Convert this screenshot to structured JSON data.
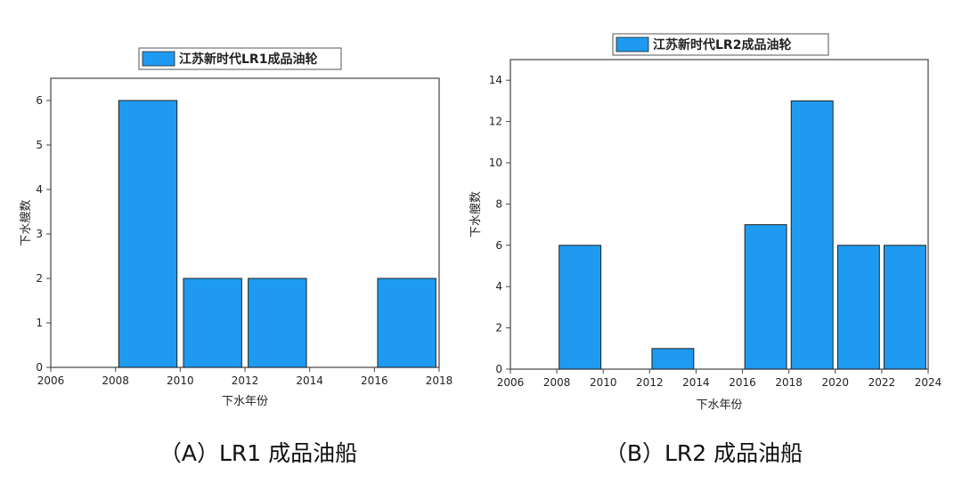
{
  "chart_data": [
    {
      "type": "bar",
      "caption": "（A）LR1 成品油船",
      "legend": "江苏新时代LR1成品油轮",
      "xlabel": "下水年份",
      "ylabel": "下水艘数",
      "xlim": [
        2006,
        2018
      ],
      "ylim": [
        0,
        6.5
      ],
      "xticks": [
        2006,
        2008,
        2010,
        2012,
        2014,
        2016,
        2018
      ],
      "yticks": [
        0,
        1,
        2,
        3,
        4,
        5,
        6
      ],
      "bar_width": 1.8,
      "x": [
        2009,
        2011,
        2013,
        2017
      ],
      "values": [
        6,
        2,
        2,
        2
      ],
      "color": "#1E9BF0",
      "grid": false,
      "legend_position": "top"
    },
    {
      "type": "bar",
      "caption": "（B）LR2 成品油船",
      "legend": "江苏新时代LR2成品油轮",
      "xlabel": "下水年份",
      "ylabel": "下水艘数",
      "xlim": [
        2006,
        2024
      ],
      "ylim": [
        0,
        15
      ],
      "xticks": [
        2006,
        2008,
        2010,
        2012,
        2014,
        2016,
        2018,
        2020,
        2022,
        2024
      ],
      "yticks": [
        0,
        2,
        4,
        6,
        8,
        10,
        12,
        14
      ],
      "bar_width": 1.8,
      "x": [
        2009,
        2013,
        2017,
        2019,
        2021,
        2023
      ],
      "values": [
        6,
        1,
        7,
        13,
        6,
        6
      ],
      "color": "#1E9BF0",
      "grid": false,
      "legend_position": "top"
    }
  ]
}
